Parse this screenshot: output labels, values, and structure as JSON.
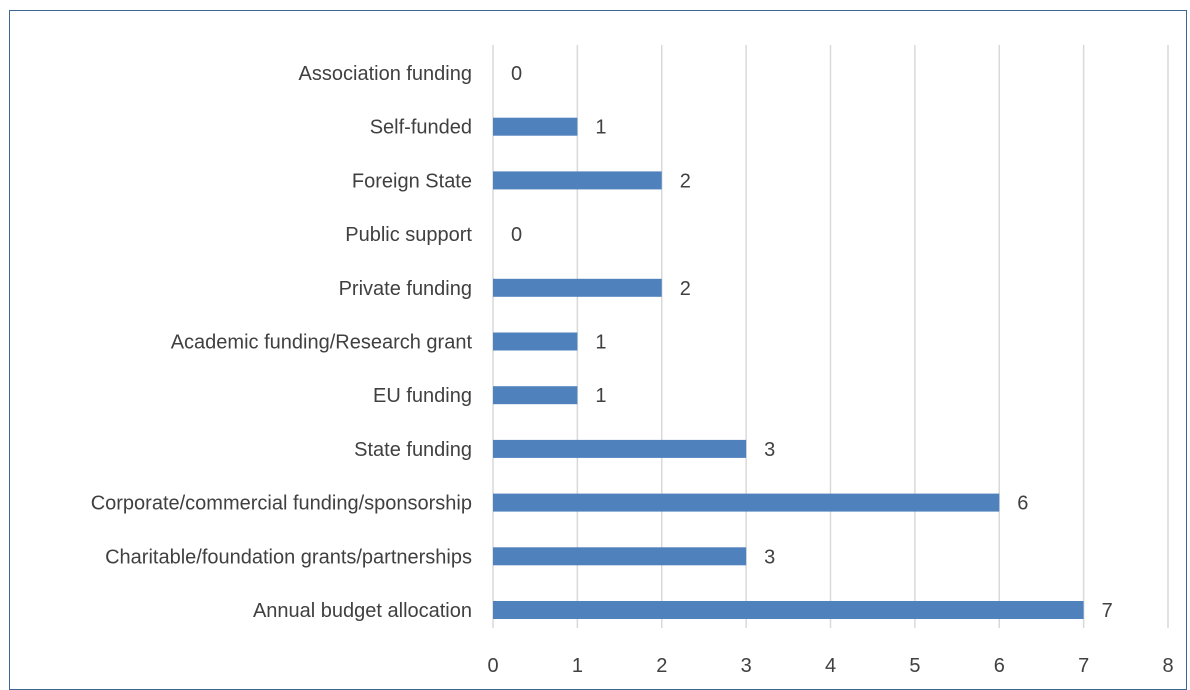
{
  "chart_data": {
    "type": "bar",
    "orientation": "horizontal",
    "categories": [
      "Association funding",
      "Self-funded",
      "Foreign State",
      "Public support",
      "Private funding",
      "Academic funding/Research grant",
      "EU funding",
      "State funding",
      "Corporate/commercial funding/sponsorship",
      "Charitable/foundation grants/partnerships",
      "Annual budget allocation"
    ],
    "values": [
      0,
      1,
      2,
      0,
      2,
      1,
      1,
      3,
      6,
      3,
      7
    ],
    "title": "",
    "xlabel": "",
    "ylabel": "",
    "xlim": [
      0,
      8
    ],
    "xticks": [
      "0",
      "1",
      "2",
      "3",
      "4",
      "5",
      "6",
      "7",
      "8"
    ],
    "grid": "vertical",
    "legend": "none",
    "bar_color": "#4f81bd",
    "frame_color": "#3d6690"
  }
}
